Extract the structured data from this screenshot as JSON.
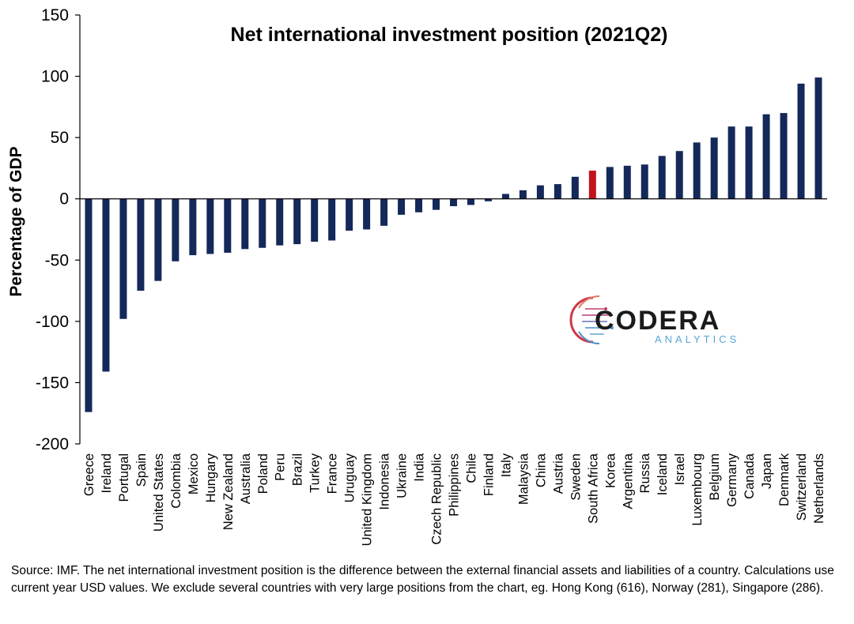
{
  "chart_data": {
    "type": "bar",
    "title": "Net international investment position (2021Q2)",
    "ylabel": "Percentage of GDP",
    "xlabel": "",
    "ylim": [
      -200,
      150
    ],
    "yticks": [
      150,
      100,
      50,
      0,
      -50,
      -100,
      -150,
      -200
    ],
    "grid": false,
    "categories": [
      "Greece",
      "Ireland",
      "Portugal",
      "Spain",
      "United States",
      "Colombia",
      "Mexico",
      "Hungary",
      "New Zealand",
      "Australia",
      "Poland",
      "Peru",
      "Brazil",
      "Turkey",
      "France",
      "Uruguay",
      "United Kingdom",
      "Indonesia",
      "Ukraine",
      "India",
      "Czech Republic",
      "Philippines",
      "Chile",
      "Finland",
      "Italy",
      "Malaysia",
      "China",
      "Austria",
      "Sweden",
      "South Africa",
      "Korea",
      "Argentina",
      "Russia",
      "Iceland",
      "Israel",
      "Luxembourg",
      "Belgium",
      "Germany",
      "Canada",
      "Japan",
      "Denmark",
      "Switzerland",
      "Netherlands"
    ],
    "values": [
      -174,
      -141,
      -98,
      -75,
      -67,
      -51,
      -46,
      -45,
      -44,
      -41,
      -40,
      -38,
      -37,
      -35,
      -34,
      -26,
      -25,
      -22,
      -13,
      -11,
      -9,
      -6,
      -5,
      -2,
      4,
      7,
      11,
      12,
      18,
      23,
      26,
      27,
      28,
      35,
      39,
      46,
      50,
      59,
      59,
      69,
      70,
      94,
      99
    ],
    "colors": {
      "default": "#14285a",
      "highlight": "#c0141b"
    },
    "highlight_category": "South Africa"
  },
  "logo": {
    "name": "CODERA",
    "tagline": "ANALYTICS"
  },
  "source_note": "Source: IMF. The net international investment position is the difference between the external financial assets and liabilities of a country. Calculations use current year USD values. We exclude several countries with very large positions from the chart, eg. Hong Kong (616), Norway (281), Singapore (286)."
}
